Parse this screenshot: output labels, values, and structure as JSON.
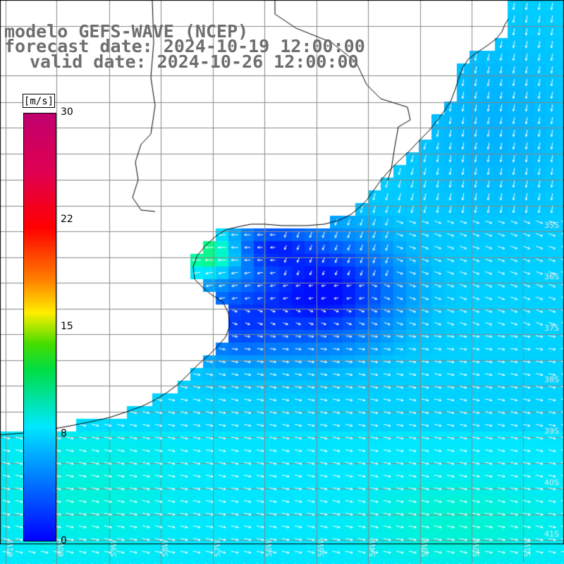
{
  "title": {
    "line1": "modelo GEFS-WAVE (NCEP)",
    "line2": "forecast date: 2024-10-19 12:00:00",
    "line3": "valid date: 2024-10-26 12:00:00"
  },
  "colorbar": {
    "unit": "[m/s]",
    "ticks": [
      "30",
      "22",
      "15",
      "8",
      "0"
    ],
    "colors": [
      "#0000ff",
      "#00aaff",
      "#00e8ff",
      "#00dd44",
      "#ffee00",
      "#ff8000",
      "#ff0000",
      "#c0006e"
    ]
  },
  "map": {
    "lat_labels": [
      "35S",
      "36S",
      "37S",
      "38S",
      "39S",
      "40S",
      "41S"
    ],
    "lon_labels": [
      "61W",
      "60W",
      "59W",
      "58W",
      "57W",
      "56W",
      "55W",
      "54W",
      "53W",
      "52W",
      "51W"
    ],
    "land_color": "#ffffff",
    "grid_color": "#888888",
    "arrow_color": "#ffffff"
  }
}
